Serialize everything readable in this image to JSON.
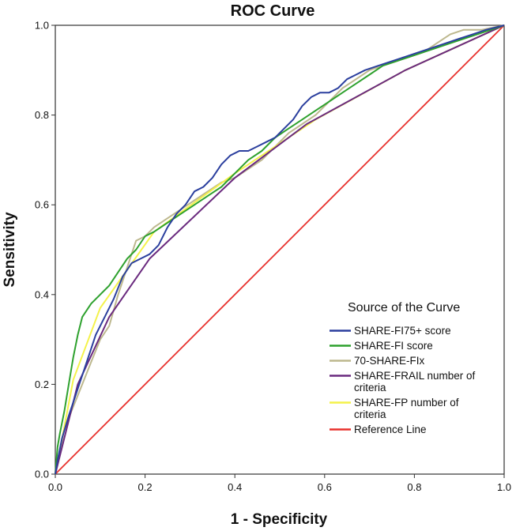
{
  "chart_data": {
    "type": "line",
    "title": "ROC Curve",
    "xlabel": "1 - Specificity",
    "ylabel": "Sensitivity",
    "xlim": [
      0,
      1
    ],
    "ylim": [
      0,
      1
    ],
    "x_ticks": [
      "0.0",
      "0.2",
      "0.4",
      "0.6",
      "0.8",
      "1.0"
    ],
    "y_ticks": [
      "0.0",
      "0.2",
      "0.4",
      "0.6",
      "0.8",
      "1.0"
    ],
    "grid": false,
    "legend": {
      "title": "Source of the Curve",
      "position": "bottom-right"
    },
    "series": [
      {
        "name": "SHARE-FI75+ score",
        "lines": [
          "SHARE-FI75+ score"
        ],
        "color": "#2b3f9e",
        "points": [
          [
            0,
            0
          ],
          [
            0.005,
            0.03
          ],
          [
            0.015,
            0.08
          ],
          [
            0.03,
            0.13
          ],
          [
            0.05,
            0.19
          ],
          [
            0.07,
            0.25
          ],
          [
            0.09,
            0.31
          ],
          [
            0.11,
            0.35
          ],
          [
            0.13,
            0.39
          ],
          [
            0.15,
            0.44
          ],
          [
            0.17,
            0.47
          ],
          [
            0.19,
            0.48
          ],
          [
            0.21,
            0.49
          ],
          [
            0.23,
            0.51
          ],
          [
            0.25,
            0.55
          ],
          [
            0.27,
            0.58
          ],
          [
            0.29,
            0.6
          ],
          [
            0.31,
            0.63
          ],
          [
            0.33,
            0.64
          ],
          [
            0.35,
            0.66
          ],
          [
            0.37,
            0.69
          ],
          [
            0.39,
            0.71
          ],
          [
            0.41,
            0.72
          ],
          [
            0.43,
            0.72
          ],
          [
            0.45,
            0.73
          ],
          [
            0.47,
            0.74
          ],
          [
            0.49,
            0.75
          ],
          [
            0.51,
            0.77
          ],
          [
            0.53,
            0.79
          ],
          [
            0.55,
            0.82
          ],
          [
            0.57,
            0.84
          ],
          [
            0.59,
            0.85
          ],
          [
            0.61,
            0.85
          ],
          [
            0.63,
            0.86
          ],
          [
            0.65,
            0.88
          ],
          [
            0.67,
            0.89
          ],
          [
            0.69,
            0.9
          ],
          [
            0.72,
            0.91
          ],
          [
            0.75,
            0.92
          ],
          [
            0.78,
            0.93
          ],
          [
            0.81,
            0.94
          ],
          [
            0.84,
            0.95
          ],
          [
            0.87,
            0.96
          ],
          [
            0.9,
            0.97
          ],
          [
            0.93,
            0.98
          ],
          [
            0.96,
            0.99
          ],
          [
            1.0,
            1.0
          ]
        ]
      },
      {
        "name": "SHARE-FI score",
        "lines": [
          "SHARE-FI score"
        ],
        "color": "#2ea12e",
        "points": [
          [
            0,
            0
          ],
          [
            0.005,
            0.06
          ],
          [
            0.01,
            0.09
          ],
          [
            0.02,
            0.14
          ],
          [
            0.03,
            0.2
          ],
          [
            0.04,
            0.26
          ],
          [
            0.05,
            0.31
          ],
          [
            0.06,
            0.35
          ],
          [
            0.08,
            0.38
          ],
          [
            0.1,
            0.4
          ],
          [
            0.12,
            0.42
          ],
          [
            0.14,
            0.45
          ],
          [
            0.16,
            0.48
          ],
          [
            0.18,
            0.5
          ],
          [
            0.2,
            0.53
          ],
          [
            0.22,
            0.54
          ],
          [
            0.25,
            0.56
          ],
          [
            0.28,
            0.58
          ],
          [
            0.31,
            0.6
          ],
          [
            0.34,
            0.62
          ],
          [
            0.37,
            0.64
          ],
          [
            0.4,
            0.67
          ],
          [
            0.43,
            0.7
          ],
          [
            0.46,
            0.72
          ],
          [
            0.49,
            0.75
          ],
          [
            0.52,
            0.77
          ],
          [
            0.55,
            0.79
          ],
          [
            0.58,
            0.81
          ],
          [
            0.61,
            0.83
          ],
          [
            0.64,
            0.85
          ],
          [
            0.67,
            0.87
          ],
          [
            0.7,
            0.89
          ],
          [
            0.73,
            0.91
          ],
          [
            0.76,
            0.92
          ],
          [
            0.79,
            0.93
          ],
          [
            0.82,
            0.94
          ],
          [
            0.85,
            0.95
          ],
          [
            0.88,
            0.96
          ],
          [
            0.91,
            0.97
          ],
          [
            0.94,
            0.98
          ],
          [
            0.97,
            0.99
          ],
          [
            1.0,
            1.0
          ]
        ]
      },
      {
        "name": "70-SHARE-FIx",
        "lines": [
          "70-SHARE-FIx"
        ],
        "color": "#bdb88e",
        "points": [
          [
            0,
            0
          ],
          [
            0.01,
            0.05
          ],
          [
            0.02,
            0.1
          ],
          [
            0.04,
            0.15
          ],
          [
            0.06,
            0.2
          ],
          [
            0.08,
            0.25
          ],
          [
            0.1,
            0.3
          ],
          [
            0.12,
            0.33
          ],
          [
            0.14,
            0.4
          ],
          [
            0.16,
            0.46
          ],
          [
            0.18,
            0.52
          ],
          [
            0.2,
            0.53
          ],
          [
            0.22,
            0.55
          ],
          [
            0.25,
            0.57
          ],
          [
            0.28,
            0.59
          ],
          [
            0.31,
            0.61
          ],
          [
            0.34,
            0.63
          ],
          [
            0.37,
            0.65
          ],
          [
            0.4,
            0.66
          ],
          [
            0.43,
            0.68
          ],
          [
            0.46,
            0.7
          ],
          [
            0.49,
            0.73
          ],
          [
            0.52,
            0.76
          ],
          [
            0.55,
            0.78
          ],
          [
            0.58,
            0.8
          ],
          [
            0.61,
            0.83
          ],
          [
            0.64,
            0.86
          ],
          [
            0.67,
            0.88
          ],
          [
            0.7,
            0.9
          ],
          [
            0.73,
            0.91
          ],
          [
            0.76,
            0.92
          ],
          [
            0.79,
            0.93
          ],
          [
            0.82,
            0.94
          ],
          [
            0.85,
            0.96
          ],
          [
            0.88,
            0.98
          ],
          [
            0.91,
            0.99
          ],
          [
            0.95,
            0.99
          ],
          [
            1.0,
            1.0
          ]
        ]
      },
      {
        "name": "SHARE-FRAIL number of criteria",
        "lines": [
          "SHARE-FRAIL number of",
          "criteria"
        ],
        "color": "#6a2a7e",
        "points": [
          [
            0,
            0
          ],
          [
            0.05,
            0.2
          ],
          [
            0.12,
            0.35
          ],
          [
            0.21,
            0.48
          ],
          [
            0.4,
            0.66
          ],
          [
            0.56,
            0.78
          ],
          [
            0.78,
            0.9
          ],
          [
            1.0,
            1.0
          ]
        ]
      },
      {
        "name": "SHARE-FP number of criteria",
        "lines": [
          "SHARE-FP number of",
          "criteria"
        ],
        "color": "#f4f24a",
        "points": [
          [
            0,
            0
          ],
          [
            0.04,
            0.21
          ],
          [
            0.1,
            0.37
          ],
          [
            0.22,
            0.54
          ],
          [
            0.4,
            0.67
          ],
          [
            0.58,
            0.79
          ],
          [
            0.78,
            0.9
          ],
          [
            1.0,
            1.0
          ]
        ]
      },
      {
        "name": "Reference Line",
        "lines": [
          "Reference Line"
        ],
        "color": "#e8302c",
        "points": [
          [
            0,
            0
          ],
          [
            1,
            1
          ]
        ]
      }
    ]
  }
}
